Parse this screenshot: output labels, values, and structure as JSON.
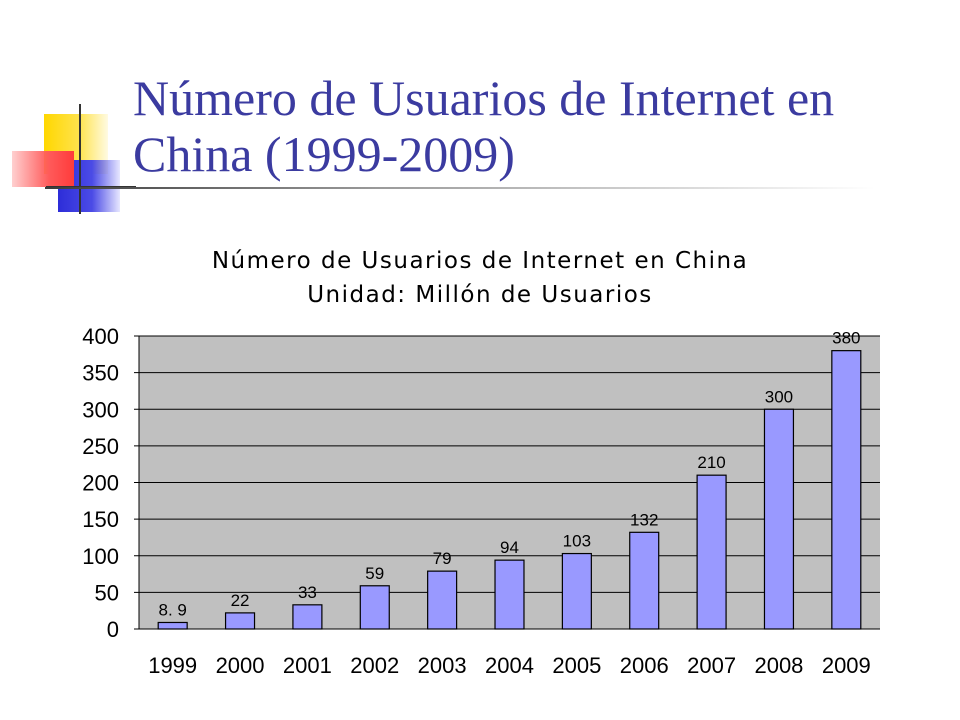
{
  "slide": {
    "title": "Número de Usuarios de Internet en China (1999-2009)"
  },
  "chart_data": {
    "type": "bar",
    "title": "Número de Usuarios de Internet en China",
    "subtitle": "Unidad: Millón de Usuarios",
    "categories": [
      "1999",
      "2000",
      "2001",
      "2002",
      "2003",
      "2004",
      "2005",
      "2006",
      "2007",
      "2008",
      "2009"
    ],
    "values": [
      8.9,
      22,
      33,
      59,
      79,
      94,
      103,
      132,
      210,
      300,
      380
    ],
    "data_labels": [
      "8. 9",
      "22",
      "33",
      "59",
      "79",
      "94",
      "103",
      "132",
      "210",
      "300",
      "380"
    ],
    "xlabel": "",
    "ylabel": "",
    "ylim": [
      0,
      400
    ],
    "yticks": [
      0,
      50,
      100,
      150,
      200,
      250,
      300,
      350,
      400
    ],
    "grid": true,
    "legend": "none",
    "colors": {
      "bar_fill": "#9999ff",
      "bar_stroke": "#000000",
      "plot_bg": "#c0c0c0",
      "title_color": "#3b3ba0"
    }
  }
}
